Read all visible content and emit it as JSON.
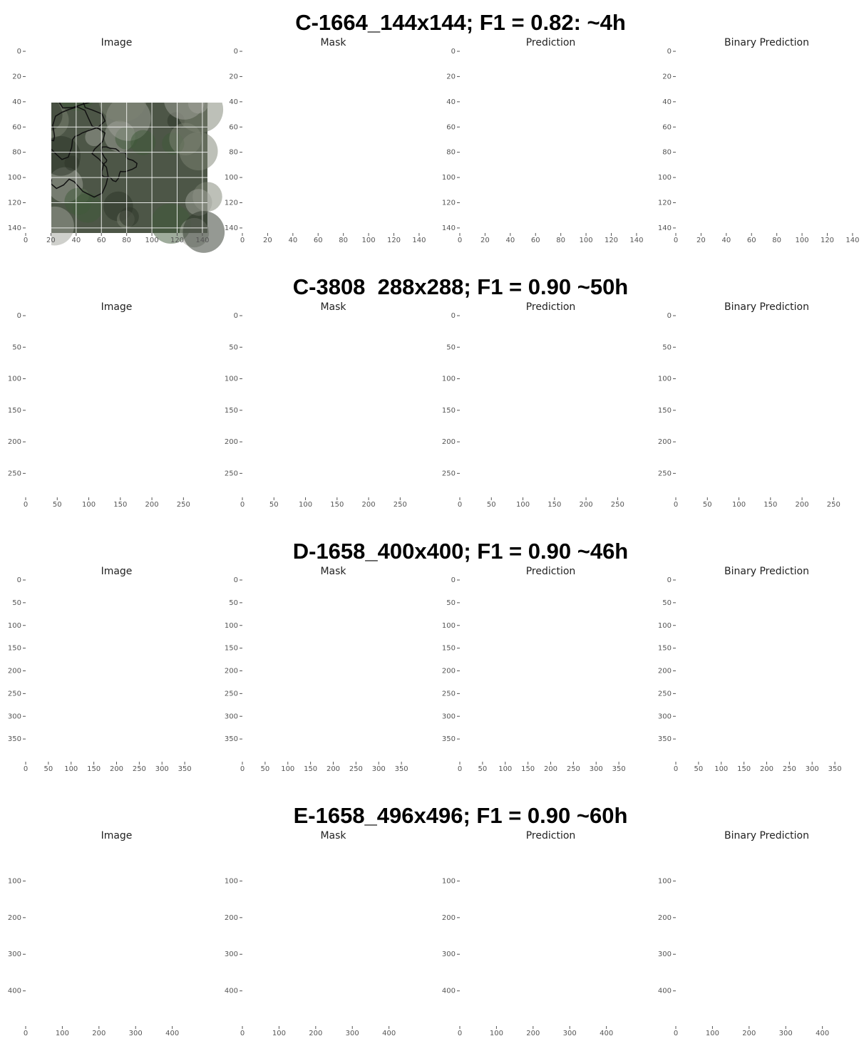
{
  "rows": [
    {
      "title": "C-1664_144x144; F1 = 0.82: ~4h",
      "panels": [
        "Image",
        "Mask",
        "Prediction",
        "Binary Prediction"
      ],
      "xlim": [
        0,
        144
      ],
      "ylim": [
        0,
        144
      ],
      "xticks": [
        0,
        20,
        40,
        60,
        80,
        100,
        120,
        140
      ],
      "yticks": [
        0,
        20,
        40,
        60,
        80,
        100,
        120,
        140
      ]
    },
    {
      "title": "C-3808  288x288; F1 = 0.90 ~50h",
      "panels": [
        "Image",
        "Mask",
        "Prediction",
        "Binary Prediction"
      ],
      "xlim": [
        0,
        288
      ],
      "ylim": [
        0,
        288
      ],
      "xticks": [
        0,
        50,
        100,
        150,
        200,
        250
      ],
      "yticks": [
        0,
        50,
        100,
        150,
        200,
        250
      ]
    },
    {
      "title": "D-1658_400x400; F1 = 0.90 ~46h",
      "panels": [
        "Image",
        "Mask",
        "Prediction",
        "Binary Prediction"
      ],
      "xlim": [
        0,
        400
      ],
      "ylim": [
        0,
        400
      ],
      "xticks": [
        0,
        50,
        100,
        150,
        200,
        250,
        300,
        350
      ],
      "yticks": [
        0,
        50,
        100,
        150,
        200,
        250,
        300,
        350
      ]
    },
    {
      "title": "E-1658_496x496; F1 = 0.90 ~60h",
      "panels": [
        "Image",
        "Mask",
        "Prediction",
        "Binary Prediction"
      ],
      "xlim": [
        0,
        496
      ],
      "ylim": [
        0,
        496
      ],
      "xticks": [
        0,
        100,
        200,
        300,
        400
      ],
      "yticks": [
        100,
        200,
        300,
        400
      ]
    }
  ]
}
